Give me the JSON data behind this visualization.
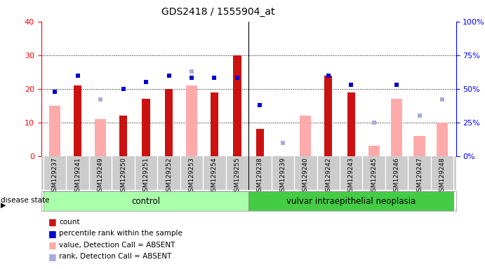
{
  "title": "GDS2418 / 1555904_at",
  "samples": [
    "GSM129237",
    "GSM129241",
    "GSM129249",
    "GSM129250",
    "GSM129251",
    "GSM129252",
    "GSM129253",
    "GSM129254",
    "GSM129255",
    "GSM129238",
    "GSM129239",
    "GSM129240",
    "GSM129242",
    "GSM129243",
    "GSM129245",
    "GSM129246",
    "GSM129247",
    "GSM129248"
  ],
  "control_count": 9,
  "disease_count": 9,
  "group1_label": "control",
  "group2_label": "vulvar intraepithelial neoplasia",
  "count": [
    null,
    21,
    null,
    12,
    17,
    20,
    null,
    19,
    30,
    8,
    null,
    null,
    24,
    19,
    null,
    null,
    null,
    null
  ],
  "rank": [
    48,
    60,
    null,
    50,
    55,
    60,
    58,
    58,
    58,
    38,
    null,
    null,
    60,
    53,
    null,
    53,
    null,
    null
  ],
  "value_absent": [
    15,
    null,
    11,
    null,
    null,
    null,
    21,
    null,
    null,
    null,
    null,
    12,
    null,
    null,
    3,
    17,
    6,
    10
  ],
  "rank_absent": [
    null,
    null,
    42,
    null,
    null,
    null,
    63,
    null,
    null,
    null,
    10,
    null,
    null,
    null,
    25,
    null,
    30,
    42
  ],
  "ylim_left": [
    0,
    40
  ],
  "ylim_right": [
    0,
    100
  ],
  "yticks_left": [
    0,
    10,
    20,
    30,
    40
  ],
  "yticks_right": [
    0,
    25,
    50,
    75,
    100
  ],
  "bar_color": "#cc1111",
  "rank_color": "#0000cc",
  "value_absent_color": "#ffaaaa",
  "rank_absent_color": "#aaaadd",
  "group1_bg": "#bbffbb",
  "group2_bg": "#44cc44",
  "tick_area_bg": "#cccccc",
  "bar_width": 0.35,
  "absent_bar_width": 0.5
}
